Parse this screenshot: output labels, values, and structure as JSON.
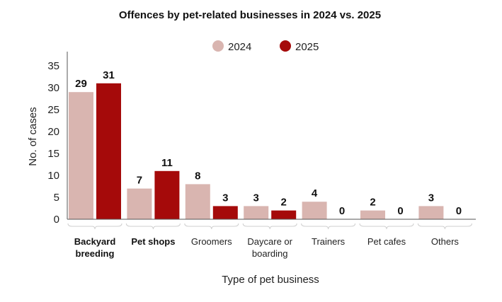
{
  "chart_data": {
    "type": "bar",
    "title": "Offences by pet-related businesses in 2024 vs. 2025",
    "xlabel": "Type of pet business",
    "ylabel": "No. of cases",
    "ylim": [
      0,
      35
    ],
    "yticks": [
      0,
      5,
      10,
      15,
      20,
      25,
      30,
      35
    ],
    "grid": false,
    "legend_position": "top-center",
    "categories": [
      {
        "lines": [
          "Backyard",
          "breeding"
        ],
        "bold": true
      },
      {
        "lines": [
          "Pet shops"
        ],
        "bold": true
      },
      {
        "lines": [
          "Groomers"
        ],
        "bold": false
      },
      {
        "lines": [
          "Daycare or",
          "boarding"
        ],
        "bold": false
      },
      {
        "lines": [
          "Trainers"
        ],
        "bold": false
      },
      {
        "lines": [
          "Pet cafes"
        ],
        "bold": false
      },
      {
        "lines": [
          "Others"
        ],
        "bold": false
      }
    ],
    "series": [
      {
        "name": "2024",
        "color": "#d9b5b0",
        "values": [
          29,
          7,
          8,
          3,
          4,
          2,
          3
        ]
      },
      {
        "name": "2025",
        "color": "#a50a0a",
        "values": [
          31,
          11,
          3,
          2,
          0,
          0,
          0
        ]
      }
    ]
  }
}
